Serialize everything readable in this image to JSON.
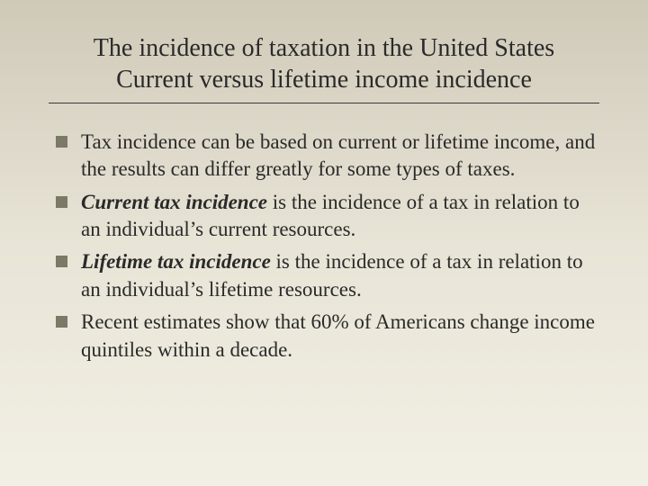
{
  "slide": {
    "title_line1": "The incidence of taxation in the United States",
    "title_line2": "Current versus lifetime income incidence",
    "bullets": [
      {
        "term": "",
        "rest": "Tax incidence can be based on current or lifetime income, and the results can differ greatly for some types of taxes."
      },
      {
        "term": "Current tax incidence",
        "rest": " is the incidence of a tax in relation to an individual’s current resources."
      },
      {
        "term": "Lifetime tax incidence",
        "rest": " is the incidence of a tax in relation to an individual’s lifetime resources."
      },
      {
        "term": "",
        "rest": "Recent estimates show that 60% of Americans change income quintiles within a decade."
      }
    ]
  },
  "colors": {
    "bullet_square": "#7a7a66",
    "text": "#2a2a2a",
    "rule": "#3a3a3a",
    "bg_top": "#cfc9b8",
    "bg_bottom": "#f2efe5"
  },
  "typography": {
    "title_fontsize": 28,
    "body_fontsize": 23,
    "font_family": "Garamond"
  }
}
